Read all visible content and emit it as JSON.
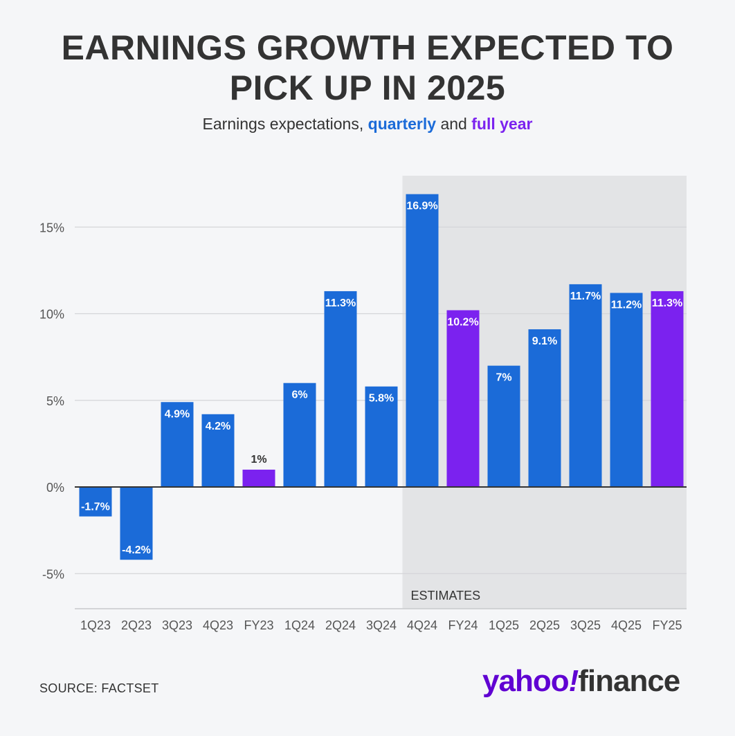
{
  "title_line1": "EARNINGS GROWTH EXPECTED TO",
  "title_line2": "PICK UP IN 2025",
  "subtitle": {
    "prefix": "Earnings expectations, ",
    "quarterly": "quarterly",
    "middle": " and ",
    "full_year": "full year"
  },
  "source": "SOURCE: FACTSET",
  "logo": {
    "yahoo": "yahoo",
    "bang": "!",
    "finance": "finance"
  },
  "colors": {
    "quarterly": "#1b6bd8",
    "full_year": "#7b22ef",
    "estimates_bg": "#e3e4e6",
    "background": "#f5f6f8"
  },
  "chart_data": {
    "type": "bar",
    "title": "EARNINGS GROWTH EXPECTED TO PICK UP IN 2025",
    "subtitle": "Earnings expectations, quarterly and full year",
    "categories": [
      "1Q23",
      "2Q23",
      "3Q23",
      "4Q23",
      "FY23",
      "1Q24",
      "2Q24",
      "3Q24",
      "4Q24",
      "FY24",
      "1Q25",
      "2Q25",
      "3Q25",
      "4Q25",
      "FY25"
    ],
    "values": [
      -1.7,
      -4.2,
      4.9,
      4.2,
      1,
      6,
      11.3,
      5.8,
      16.9,
      10.2,
      7,
      9.1,
      11.7,
      11.2,
      11.3
    ],
    "labels": [
      "-1.7%",
      "-4.2%",
      "4.9%",
      "4.2%",
      "1%",
      "6%",
      "11.3%",
      "5.8%",
      "16.9%",
      "10.2%",
      "7%",
      "9.1%",
      "11.7%",
      "11.2%",
      "11.3%"
    ],
    "kind": [
      "quarterly",
      "quarterly",
      "quarterly",
      "quarterly",
      "full_year",
      "quarterly",
      "quarterly",
      "quarterly",
      "quarterly",
      "full_year",
      "quarterly",
      "quarterly",
      "quarterly",
      "quarterly",
      "full_year"
    ],
    "yticks": [
      -5,
      0,
      5,
      10,
      15
    ],
    "ytick_labels": [
      "-5%",
      "0%",
      "5%",
      "10%",
      "15%"
    ],
    "ylim": [
      -7,
      18
    ],
    "estimates_label": "ESTIMATES",
    "estimates_start_category": "4Q24",
    "grid": true,
    "xlabel": "",
    "ylabel": ""
  }
}
